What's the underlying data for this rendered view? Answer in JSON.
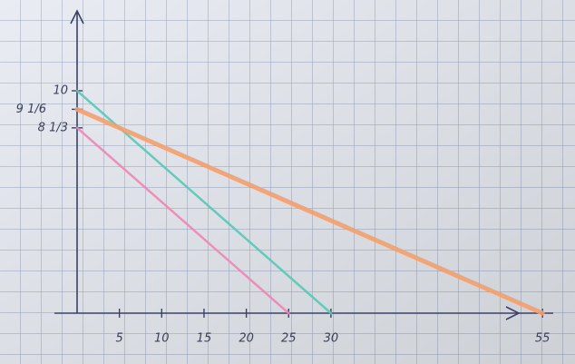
{
  "chart_data": {
    "type": "line",
    "xlim": [
      0,
      58
    ],
    "ylim": [
      0,
      13.5
    ],
    "xticks": [
      5,
      10,
      15,
      20,
      25,
      30,
      55
    ],
    "yticks": [
      {
        "value": 8.3333,
        "label": "8 1/3"
      },
      {
        "value": 9.1667,
        "label": "9 1/6"
      },
      10
    ],
    "series": [
      {
        "color": "#ee86b4",
        "x": [
          0,
          25
        ],
        "values": [
          8.3333,
          0
        ]
      },
      {
        "color": "#58c8b6",
        "x": [
          0,
          30
        ],
        "values": [
          10,
          0
        ]
      },
      {
        "color": "#f2a06e",
        "x": [
          0,
          55
        ],
        "values": [
          9.1667,
          0
        ]
      }
    ]
  }
}
